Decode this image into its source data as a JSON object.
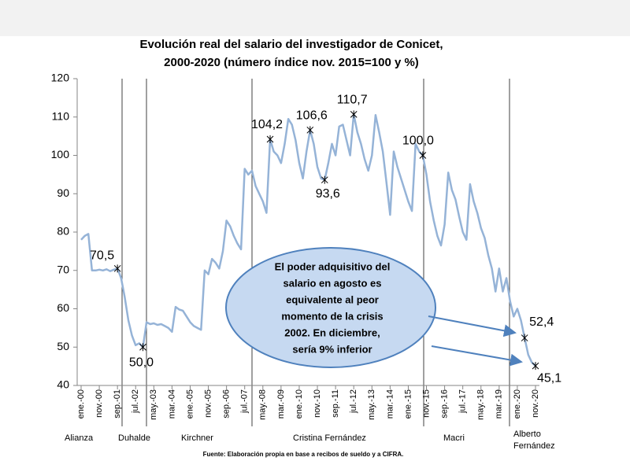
{
  "chart_data": {
    "type": "line",
    "title_lines": [
      "Evolución real del salario del investigador de Conicet,",
      "2000-2020 (número índice nov. 2015=100 y %)"
    ],
    "categories": [
      "ene.-00",
      null,
      null,
      null,
      null,
      "nov.-00",
      null,
      null,
      null,
      null,
      "sep.-01",
      null,
      null,
      null,
      null,
      "jul.-02",
      null,
      null,
      null,
      null,
      "may.-03",
      null,
      null,
      null,
      null,
      "mar.-04",
      null,
      null,
      null,
      null,
      "ene.-05",
      null,
      null,
      null,
      null,
      "nov.-05",
      null,
      null,
      null,
      null,
      "sep.-06",
      null,
      null,
      null,
      null,
      "jul.-07",
      null,
      null,
      null,
      null,
      "may.-08",
      null,
      null,
      null,
      null,
      "mar.-09",
      null,
      null,
      null,
      null,
      "ene.-10",
      null,
      null,
      null,
      null,
      "nov.-10",
      null,
      null,
      null,
      null,
      "sep.-11",
      null,
      null,
      null,
      null,
      "jul.-12",
      null,
      null,
      null,
      null,
      "may.-13",
      null,
      null,
      null,
      null,
      "mar.-14",
      null,
      null,
      null,
      null,
      "ene.-15",
      null,
      null,
      null,
      null,
      "nov.-15",
      null,
      null,
      null,
      null,
      "sep.-16",
      null,
      null,
      null,
      null,
      "jul.-17",
      null,
      null,
      null,
      null,
      "may.-18",
      null,
      null,
      null,
      null,
      "mar.-19",
      null,
      null,
      null,
      null,
      "ene.-20",
      null,
      null,
      null,
      null,
      "nov.-20"
    ],
    "color": "#95b3d7",
    "values": [
      78,
      79,
      79.5,
      70,
      70,
      70.2,
      70,
      70.3,
      69.8,
      70.2,
      70.5,
      68,
      63,
      57,
      53,
      50.5,
      51,
      50,
      56.5,
      56,
      56.2,
      55.8,
      56,
      55.5,
      55,
      54,
      60.5,
      59.8,
      59.5,
      58,
      56.5,
      55.5,
      55,
      54.5,
      70,
      69,
      73,
      72,
      70.5,
      75,
      83,
      81.5,
      79,
      77,
      75.5,
      96.5,
      95,
      96,
      92,
      90,
      88,
      85,
      104.2,
      101,
      100,
      98,
      103,
      109.5,
      108,
      104,
      98,
      94,
      101,
      106.6,
      103,
      97,
      94,
      93.6,
      98,
      103,
      100,
      107.5,
      108,
      104,
      100,
      110.7,
      106,
      103,
      99,
      96,
      100,
      110.5,
      106,
      101,
      93,
      84.5,
      101,
      97,
      94,
      91,
      88,
      85.5,
      103,
      101,
      100,
      95,
      88,
      83,
      79,
      76.5,
      82,
      95.5,
      91,
      88.5,
      84,
      80,
      78,
      92.5,
      88,
      85,
      81,
      78.5,
      74,
      70.5,
      64.5,
      70.5,
      64.5,
      68,
      62,
      58,
      60,
      57,
      52.4,
      48,
      46,
      45.1
    ],
    "value_labels": [
      null,
      null,
      null,
      null,
      null,
      null,
      null,
      null,
      null,
      null,
      "70,5",
      null,
      null,
      null,
      null,
      null,
      null,
      "50,0",
      null,
      null,
      null,
      null,
      null,
      null,
      null,
      null,
      null,
      null,
      null,
      null,
      null,
      null,
      null,
      null,
      null,
      null,
      null,
      null,
      null,
      null,
      null,
      null,
      null,
      null,
      null,
      null,
      null,
      null,
      null,
      null,
      null,
      null,
      "104,2",
      null,
      null,
      null,
      null,
      null,
      null,
      null,
      null,
      null,
      null,
      "106,6",
      null,
      null,
      null,
      "93,6",
      null,
      null,
      null,
      null,
      null,
      null,
      null,
      "110,7",
      null,
      null,
      null,
      null,
      null,
      null,
      null,
      null,
      null,
      null,
      null,
      null,
      null,
      null,
      null,
      null,
      null,
      null,
      "100,0",
      null,
      null,
      null,
      null,
      null,
      null,
      null,
      null,
      null,
      null,
      null,
      null,
      null,
      null,
      null,
      null,
      null,
      null,
      null,
      null,
      null,
      null,
      null,
      null,
      null,
      null,
      null,
      "52,4",
      null,
      null,
      "45,1"
    ],
    "ylim": [
      40,
      120
    ],
    "yticks": [
      40,
      50,
      60,
      70,
      80,
      90,
      100,
      110,
      120
    ],
    "periods": [
      "Alianza",
      "Duhalde",
      "Kirchner",
      "Cristina Fernández",
      "Macri",
      [
        "Alberto",
        "Fernández"
      ]
    ],
    "annotation_lines": [
      "El poder adquisitivo del",
      "salario en agosto es",
      "equivalente al peor",
      "momento de la crisis",
      "2002. En diciembre,",
      "sería 9% inferior"
    ],
    "source": "Fuente: Elaboración propia en base a recibos de sueldo y a CIFRA."
  }
}
